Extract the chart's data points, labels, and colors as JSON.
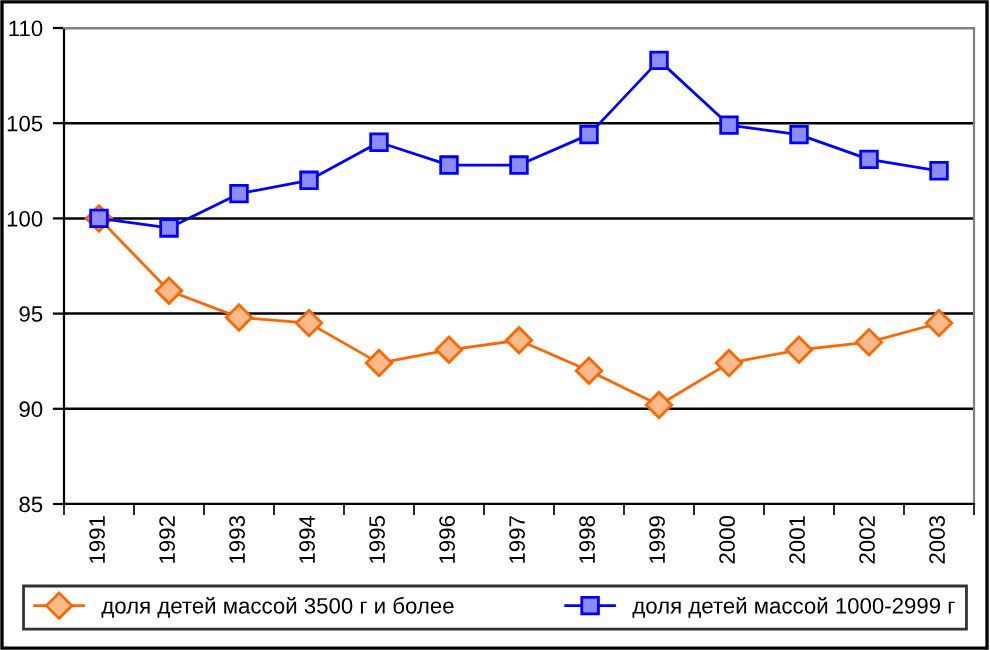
{
  "chart_data": {
    "type": "line",
    "categories": [
      "1991",
      "1992",
      "1993",
      "1994",
      "1995",
      "1996",
      "1997",
      "1998",
      "1999",
      "2000",
      "2001",
      "2002",
      "2003"
    ],
    "series": [
      {
        "name": "доля детей массой 3500 г и более",
        "color": "#ff6600",
        "marker": "diamond",
        "values": [
          100,
          96.2,
          94.8,
          94.5,
          92.4,
          93.1,
          93.6,
          92.0,
          90.2,
          92.4,
          93.1,
          93.5,
          94.5
        ]
      },
      {
        "name": "доля детей массой 1000-2999 г",
        "color": "#0000ff",
        "marker": "square",
        "values": [
          100,
          99.5,
          101.3,
          102.0,
          104.0,
          102.8,
          102.8,
          104.4,
          108.3,
          104.9,
          104.4,
          103.1,
          102.5
        ]
      }
    ],
    "ylim": [
      85,
      110
    ],
    "yticks": [
      85,
      90,
      95,
      100,
      105,
      110
    ],
    "grid": "y",
    "legend": "bottom",
    "line_style": "solid"
  }
}
